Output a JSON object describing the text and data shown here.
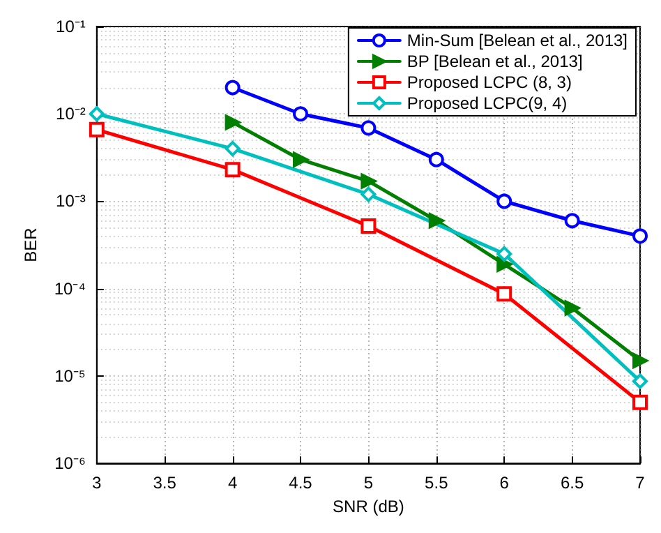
{
  "chart_data": {
    "type": "line",
    "xlabel": "SNR (dB)",
    "ylabel": "BER",
    "log": "y",
    "grid": true,
    "legend": "top right",
    "line_style": "solid",
    "xlim": [
      3,
      7
    ],
    "xticks": [
      3,
      3.5,
      4,
      4.5,
      5,
      5.5,
      6,
      6.5,
      7
    ],
    "ylim": [
      1e-06,
      0.1
    ],
    "yticks": [
      {
        "value": 1e-06,
        "label": "10⁻⁶"
      },
      {
        "value": 1e-05,
        "label": "10⁻⁵"
      },
      {
        "value": 0.0001,
        "label": "10⁻⁴"
      },
      {
        "value": 0.001,
        "label": "10⁻³"
      },
      {
        "value": 0.01,
        "label": "10⁻²"
      },
      {
        "value": 0.1,
        "label": "10⁻¹"
      }
    ],
    "series": [
      {
        "name": "Min-Sum [Belean et al., 2013]",
        "color": "#0000ff",
        "marker": "circle",
        "x": [
          4,
          4.5,
          5,
          5.5,
          6,
          6.5,
          7
        ],
        "values": [
          0.02,
          0.01,
          0.0069,
          0.003,
          0.001,
          0.0006,
          0.0004
        ]
      },
      {
        "name": "BP [Belean et al., 2013]",
        "color": "#007f00",
        "marker": "triangle",
        "x": [
          4,
          4.5,
          5,
          5.5,
          6,
          6.5,
          7
        ],
        "values": [
          0.008,
          0.003,
          0.0017,
          0.0006,
          0.00019,
          6e-05,
          1.5e-05
        ]
      },
      {
        "name": "Proposed LCPC (8, 3)",
        "color": "#ff0000",
        "marker": "square",
        "x": [
          3,
          4,
          5,
          6,
          7
        ],
        "values": [
          0.0066,
          0.0023,
          0.00052,
          8.7e-05,
          5e-06
        ]
      },
      {
        "name": "Proposed LCPC(9, 4)",
        "color": "#00bfbf",
        "marker": "diamond",
        "x": [
          3,
          4,
          5,
          6,
          7
        ],
        "values": [
          0.01,
          0.004,
          0.0012,
          0.00025,
          8.7e-06
        ]
      }
    ]
  }
}
